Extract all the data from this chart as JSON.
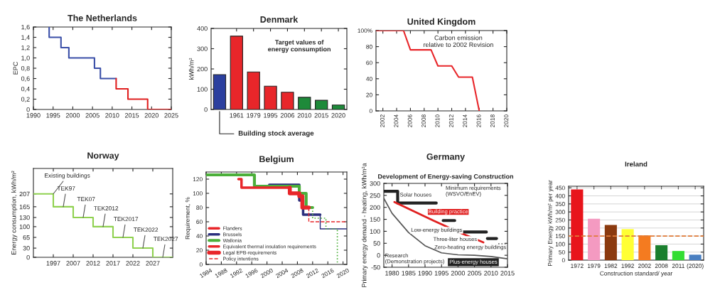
{
  "chart_data": [
    {
      "type": "step",
      "title": "The Netherlands",
      "ylabel": "EPC",
      "xlim": [
        1990,
        2025
      ],
      "xticks": [
        1990,
        1995,
        2000,
        2005,
        2010,
        2015,
        2020,
        2025
      ],
      "ylim": [
        0,
        1.6
      ],
      "yticks": [
        0,
        {
          "value": 0.2,
          "label": "0,2"
        },
        {
          "value": 0.4,
          "label": "0,4"
        },
        {
          "value": 0.6,
          "label": "0,6"
        },
        {
          "value": 0.8,
          "label": "0,8"
        },
        {
          "value": 1.0,
          "label": "1,0"
        },
        {
          "value": 1.2,
          "label": "1,2"
        },
        {
          "value": 1.4,
          "label": "1,4"
        },
        {
          "value": 1.6,
          "label": "1,6"
        }
      ],
      "series": [
        {
          "color": "#3a4fa8",
          "x": [
            1994,
            1994,
            1997,
            1999,
            2005.5,
            2007,
            2011
          ],
          "values": [
            1.6,
            1.4,
            1.2,
            1.0,
            0.8,
            0.6,
            0.6
          ]
        },
        {
          "color": "#e02020",
          "x": [
            2011,
            2011,
            2014,
            2019,
            2025
          ],
          "values": [
            0.6,
            0.4,
            0.2,
            0,
            0
          ]
        }
      ]
    },
    {
      "type": "bar",
      "title": "Denmark",
      "ylabel": "kWh/m²",
      "categories": [
        null,
        "1961",
        "1979",
        "1995",
        "2006",
        "2010",
        "2015",
        "2020"
      ],
      "values": [
        172,
        362,
        185,
        115,
        85,
        60,
        45,
        22
      ],
      "colors": [
        "#2b3f9e",
        "#e8262a",
        "#e8262a",
        "#e8262a",
        "#e8262a",
        "#1e8a3a",
        "#1e8a3a",
        "#1e8a3a"
      ],
      "ylim": [
        0,
        400
      ],
      "yticks": [
        0,
        100,
        200,
        300,
        400
      ],
      "annotations": [
        "Target values of\nenergy consumption",
        "Building stock average"
      ]
    },
    {
      "type": "line",
      "title": "United Kingdom",
      "color": "#e8262a",
      "x": [
        2001,
        2005,
        2006,
        2009,
        2010,
        2012,
        2013,
        2015,
        2016
      ],
      "values": [
        100,
        100,
        76,
        76,
        56,
        56,
        42,
        42,
        0
      ],
      "xlim": [
        2001,
        2020
      ],
      "xticks": [
        2002,
        2004,
        2006,
        2008,
        2010,
        2012,
        2014,
        2016,
        2018,
        2020
      ],
      "ylim": [
        0,
        100
      ],
      "yticks": [
        0,
        20,
        40,
        60,
        80,
        {
          "value": 100,
          "label": "100%"
        }
      ],
      "annotations": [
        "Carbon emission\nrelative to 2002 Revision"
      ]
    },
    {
      "type": "step",
      "title": "Norway",
      "ylabel": "Energy consumption, kWh/m²",
      "color": "#8fd14f",
      "categories": [
        null,
        "1997",
        "2007",
        "2012",
        "2017",
        "2022",
        "2027",
        null
      ],
      "values": [
        207,
        165,
        130,
        100,
        65,
        30,
        0,
        0
      ],
      "ylim": [
        0,
        290
      ],
      "yticks": [
        0,
        30,
        65,
        100,
        130,
        165,
        207
      ],
      "annotations": [
        {
          "text": "Existing buildings",
          "x": "1997",
          "y": 207
        },
        {
          "text": "TEK97",
          "y": 165
        },
        {
          "text": "TEK07",
          "y": 130
        },
        {
          "text": "TEK2012",
          "y": 100
        },
        {
          "text": "TEK2017",
          "y": 65
        },
        {
          "text": "TEK2022",
          "y": 30
        },
        {
          "text": "TEK2027",
          "y": 0
        }
      ]
    },
    {
      "type": "step",
      "title": "Belgium",
      "ylabel": "Requirement, %",
      "xlim": [
        1984,
        2021
      ],
      "xticks": [
        1984,
        1988,
        1992,
        1996,
        2000,
        2004,
        2008,
        2012,
        2016,
        2020
      ],
      "ylim": [
        0,
        130
      ],
      "yticks": [
        0,
        20,
        40,
        60,
        80,
        100,
        120
      ],
      "legend": "bottom left",
      "series": [
        {
          "name": "Flanders",
          "color": "#e8262a"
        },
        {
          "name": "Brussels",
          "color": "#2b2f7e",
          "x": [
            2000.6,
            2008.5,
            2009.5,
            2014
          ],
          "values": [
            112,
            90,
            70,
            70
          ]
        },
        {
          "name": "Wallonia",
          "color": "#4caf3a",
          "x": [
            1984,
            1996.7,
            2008.5,
            2010.3,
            2012
          ],
          "values": [
            126,
            110,
            100,
            80,
            80
          ]
        },
        {
          "name": "Equivalent thermal insulation requirements",
          "color": "#e8262a",
          "x": [
            1992.5,
            1993.3,
            2006
          ],
          "values": [
            120,
            108,
            108
          ]
        },
        {
          "name": "Legal EPB-requirements",
          "color": "#e8262a",
          "x": [
            2006,
            2006,
            2008.5,
            2009.3,
            2011
          ],
          "values": [
            108,
            100,
            96,
            80,
            80
          ]
        },
        {
          "name": "Policy intentions",
          "color": "#e8262a",
          "line_style": "dashed",
          "x": [
            2011,
            2011,
            2021
          ],
          "values": [
            80,
            60,
            60
          ]
        },
        {
          "color": "#2b2f7e",
          "x": [
            2014,
            2014,
            2021
          ],
          "values": [
            70,
            50,
            50
          ]
        },
        {
          "color": "#4caf3a",
          "line_style": "dotted",
          "x": [
            2012,
            2012,
            2015.5,
            2015.5,
            2018.5,
            2018.5
          ],
          "values": [
            80,
            65,
            65,
            50,
            50,
            0
          ]
        }
      ]
    },
    {
      "type": "line",
      "title": "Germany",
      "subtitle": "Development of Energy-saving Construction",
      "ylabel": "Primary energy demand - heating, kWh/m²a",
      "xlim": [
        1977.5,
        2015
      ],
      "xticks": [
        1980,
        1985,
        1990,
        1995,
        2000,
        2005,
        2010,
        2015
      ],
      "ylim": [
        -50,
        300
      ],
      "yticks": [
        -50,
        0,
        50,
        100,
        150,
        200,
        250,
        300
      ],
      "series": [
        {
          "type": "line",
          "color": "#222222",
          "x": [
            1977.5,
            1981.7,
            1981.7,
            1993.4,
            1994,
            1995.5,
            1999,
            2000,
            2001.3,
            2008.6,
            2008.7,
            2008.9,
            2011.7
          ],
          "values": [
            267,
            267,
            218,
            218,
            null,
            145,
            145,
            null,
            97,
            97,
            null,
            70,
            70
          ]
        },
        {
          "type": "line",
          "color": "#555555",
          "line_style": "dotted",
          "x": [
            2012.2,
            2015
          ],
          "values": [
            48,
            48
          ]
        },
        {
          "type": "line",
          "color": "#e02020",
          "x": [
            1980.7,
            1992.5,
            2000.8,
            2007.7
          ],
          "values": [
            222,
            145,
            93,
            54
          ]
        },
        {
          "type": "line",
          "color": "#555555",
          "x": [
            1977.5,
            1980,
            1985,
            1990,
            1995,
            2000,
            2005,
            2010,
            2015
          ],
          "values": [
            238,
            175,
            95,
            40,
            10,
            2,
            0,
            -5,
            -15
          ]
        }
      ],
      "annotations": [
        "Minimum requirements\n(WSVO/EnEV)",
        "Solar houses",
        "Building practice",
        "Low-energy buildings",
        "Three-liter houses",
        "Zero-heating energy buildings",
        "Plus-energy houses",
        "Research\n(Demonstration projects)"
      ]
    },
    {
      "type": "bar",
      "title": "Ireland",
      "ylabel": "Primary Energy kWh/m² per year",
      "xlabel": "Construction standard/ year",
      "categories": [
        "1972",
        "1979",
        "1982",
        "1992",
        "2002",
        "2008",
        "2011",
        "(2020)"
      ],
      "values": [
        440,
        258,
        219,
        193,
        154,
        93,
        57,
        34
      ],
      "colors": [
        "#e8141b",
        "#f49ac1",
        "#8b3a0f",
        "#ffff33",
        "#f47b20",
        "#1a7f2e",
        "#33dd33",
        "#4a7fc1"
      ],
      "ylim": [
        0,
        460
      ],
      "yticks": [
        0,
        50,
        100,
        150,
        200,
        250,
        300,
        350,
        400,
        450
      ],
      "grid": "y",
      "ref_lines": [
        {
          "axis": "y",
          "value": 150,
          "color": "#e07b39",
          "line_style": "dashed"
        }
      ]
    }
  ]
}
